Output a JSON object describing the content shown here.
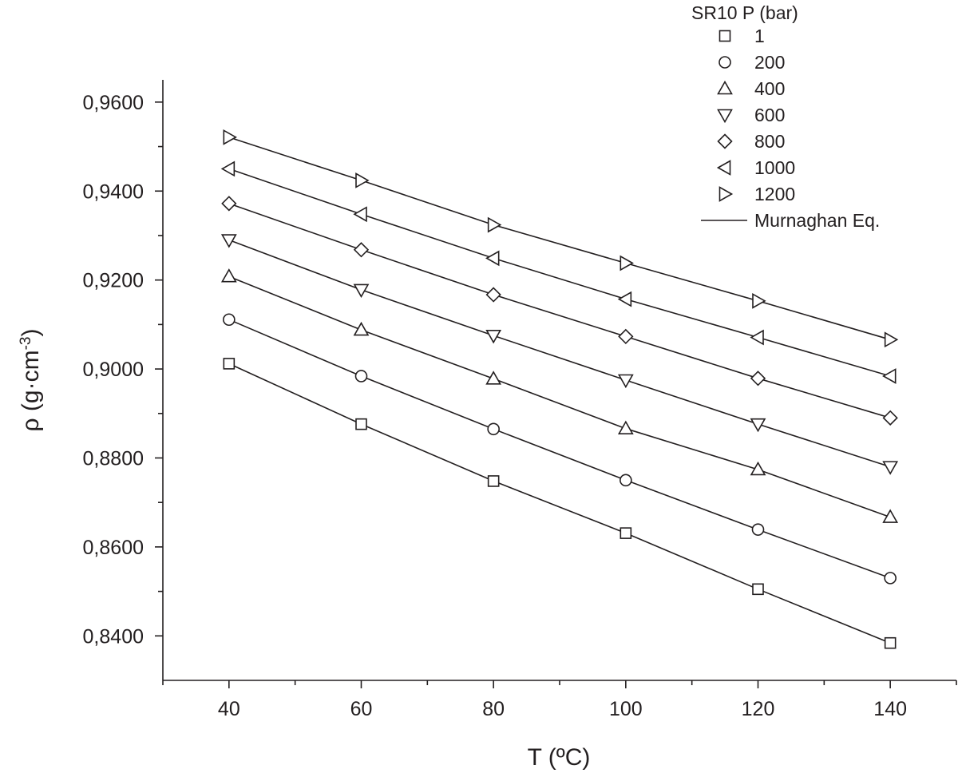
{
  "chart_data": {
    "type": "scatter",
    "title": "",
    "xlabel": "T (ºC)",
    "ylabel_main": "ρ (g·cm",
    "ylabel_sup": "-3",
    "ylabel_close": ")",
    "xlim": [
      30,
      150
    ],
    "ylim": [
      0.83,
      0.965
    ],
    "x_ticks": [
      40,
      60,
      80,
      100,
      120,
      140
    ],
    "x_tick_labels": [
      "40",
      "60",
      "80",
      "100",
      "120",
      "140"
    ],
    "y_ticks": [
      0.84,
      0.86,
      0.88,
      0.9,
      0.92,
      0.94,
      0.96
    ],
    "y_tick_labels": [
      "0,8400",
      "0,8600",
      "0,8800",
      "0,9000",
      "0,9200",
      "0,9400",
      "0,9600"
    ],
    "grid": false,
    "legend": {
      "title": "SR10 P (bar)",
      "position": "top-right",
      "fit_label": "Murnaghan Eq."
    },
    "x": [
      40,
      60,
      80,
      100,
      120,
      140
    ],
    "series": [
      {
        "name": "1",
        "marker": "square",
        "values": [
          0.9012,
          0.8876,
          0.8748,
          0.8631,
          0.8505,
          0.8384
        ]
      },
      {
        "name": "200",
        "marker": "circle",
        "values": [
          0.9111,
          0.8984,
          0.8865,
          0.875,
          0.8639,
          0.853
        ]
      },
      {
        "name": "400",
        "marker": "triangle-up",
        "values": [
          0.9208,
          0.9088,
          0.8978,
          0.8866,
          0.8774,
          0.8667
        ]
      },
      {
        "name": "600",
        "marker": "triangle-down",
        "values": [
          0.929,
          0.9178,
          0.9075,
          0.8975,
          0.8876,
          0.878
        ]
      },
      {
        "name": "800",
        "marker": "diamond",
        "values": [
          0.9372,
          0.9268,
          0.9167,
          0.9073,
          0.8979,
          0.889
        ]
      },
      {
        "name": "1000",
        "marker": "triangle-left",
        "values": [
          0.945,
          0.9348,
          0.9249,
          0.9157,
          0.9071,
          0.8984
        ]
      },
      {
        "name": "1200",
        "marker": "triangle-right",
        "values": [
          0.9521,
          0.9424,
          0.9324,
          0.9238,
          0.9153,
          0.9066
        ]
      }
    ],
    "colors": {
      "ink": "#231f20",
      "background": "#ffffff"
    }
  }
}
